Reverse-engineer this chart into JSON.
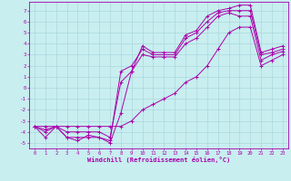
{
  "xlabel": "Windchill (Refroidissement éolien,°C)",
  "xlim": [
    -0.5,
    23.5
  ],
  "ylim": [
    -5.5,
    7.8
  ],
  "xticks": [
    0,
    1,
    2,
    3,
    4,
    5,
    6,
    7,
    8,
    9,
    10,
    11,
    12,
    13,
    14,
    15,
    16,
    17,
    18,
    19,
    20,
    21,
    22,
    23
  ],
  "yticks": [
    -5,
    -4,
    -3,
    -2,
    -1,
    0,
    1,
    2,
    3,
    4,
    5,
    6,
    7
  ],
  "bg_color": "#c8eef0",
  "grid_color": "#aad8dc",
  "line_color": "#aa00aa",
  "series": [
    [
      -3.5,
      -4.5,
      -3.5,
      -4.5,
      -4.8,
      -4.3,
      -4.5,
      -5.0,
      -2.3,
      1.5,
      3.8,
      3.2,
      3.2,
      3.2,
      4.8,
      5.2,
      6.5,
      7.0,
      7.2,
      7.5,
      7.5,
      3.2,
      3.5,
      3.8
    ],
    [
      -3.5,
      -4.0,
      -3.5,
      -4.5,
      -4.5,
      -4.5,
      -4.5,
      -4.8,
      1.5,
      2.0,
      3.5,
      3.0,
      3.0,
      3.0,
      4.5,
      5.0,
      6.0,
      6.8,
      7.0,
      7.0,
      7.0,
      3.0,
      3.2,
      3.5
    ],
    [
      -3.5,
      -3.8,
      -3.5,
      -4.0,
      -4.0,
      -4.0,
      -4.0,
      -4.5,
      0.5,
      1.5,
      3.0,
      2.8,
      2.8,
      2.8,
      4.0,
      4.5,
      5.5,
      6.5,
      6.8,
      6.5,
      6.5,
      2.5,
      3.0,
      3.3
    ],
    [
      -3.5,
      -3.5,
      -3.5,
      -3.5,
      -3.5,
      -3.5,
      -3.5,
      -3.5,
      -3.5,
      -3.0,
      -2.0,
      -1.5,
      -1.0,
      -0.5,
      0.5,
      1.0,
      2.0,
      3.5,
      5.0,
      5.5,
      5.5,
      2.0,
      2.5,
      3.0
    ]
  ]
}
